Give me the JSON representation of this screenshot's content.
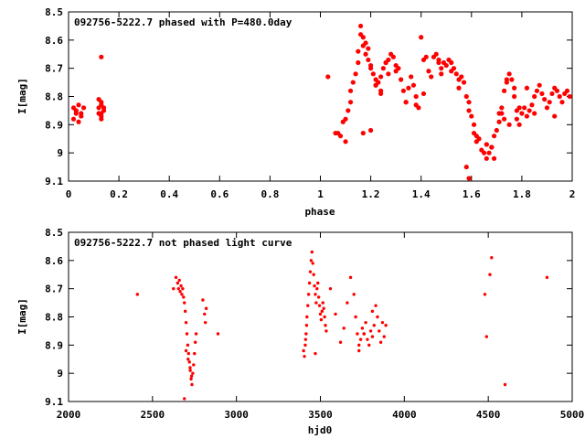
{
  "chart_data": [
    {
      "type": "scatter",
      "title": "092756-5222.7 phased with P=480.0day",
      "xlabel": "phase",
      "ylabel": "I[mag]",
      "xlim": [
        0,
        2
      ],
      "ylim": [
        9.1,
        8.5
      ],
      "y_inverted": true,
      "xticks": [
        0,
        0.2,
        0.4,
        0.6,
        0.8,
        1,
        1.2,
        1.4,
        1.6,
        1.8,
        2
      ],
      "xtick_labels": [
        "0",
        "0.2",
        "0.4",
        "0.6",
        "0.8",
        "1",
        "1.2",
        "1.4",
        "1.6",
        "1.8",
        "2"
      ],
      "yticks": [
        8.5,
        8.6,
        8.7,
        8.8,
        8.9,
        9,
        9.1
      ],
      "ytick_labels": [
        "8.5",
        "8.6",
        "8.7",
        "8.8",
        "8.9",
        "9",
        "9.1"
      ],
      "grid": false,
      "marker_color": "#ff0000",
      "x": [
        0.02,
        0.03,
        0.04,
        0.05,
        0.03,
        0.06,
        0.04,
        0.02,
        0.05,
        0.03,
        0.12,
        0.12,
        0.13,
        0.13,
        0.13,
        0.14,
        0.12,
        0.13,
        0.14,
        0.13,
        0.13,
        1.03,
        1.06,
        1.07,
        1.08,
        1.09,
        1.1,
        1.11,
        1.12,
        1.12,
        1.13,
        1.14,
        1.15,
        1.15,
        1.16,
        1.16,
        1.17,
        1.17,
        1.18,
        1.18,
        1.19,
        1.19,
        1.2,
        1.2,
        1.21,
        1.22,
        1.22,
        1.23,
        1.24,
        1.24,
        1.25,
        1.26,
        1.27,
        1.28,
        1.29,
        1.3,
        1.3,
        1.31,
        1.32,
        1.33,
        1.34,
        1.35,
        1.36,
        1.37,
        1.38,
        1.38,
        1.39,
        1.4,
        1.41,
        1.41,
        1.42,
        1.44,
        1.45,
        1.46,
        1.47,
        1.48,
        1.48,
        1.49,
        1.5,
        1.51,
        1.52,
        1.53,
        1.54,
        1.55,
        1.56,
        1.57,
        1.58,
        1.59,
        1.59,
        1.6,
        1.61,
        1.61,
        1.62,
        1.63,
        1.64,
        1.65,
        1.66,
        1.67,
        1.68,
        1.69,
        1.7,
        1.71,
        1.72,
        1.72,
        1.73,
        1.74,
        1.75,
        1.76,
        1.77,
        1.77,
        1.78,
        1.78,
        1.79,
        1.8,
        1.81,
        1.82,
        1.83,
        1.84,
        1.85,
        1.86,
        1.87,
        1.88,
        1.89,
        1.9,
        1.91,
        1.92,
        1.93,
        1.94,
        1.95,
        1.96,
        1.97,
        1.98,
        1.99,
        1.1,
        1.17,
        1.2,
        1.22,
        1.24,
        1.27,
        1.52,
        1.58,
        1.59,
        1.71,
        1.75,
        1.79,
        1.85,
        1.93,
        1.55,
        1.62,
        1.66,
        1.68,
        1.69,
        1.73,
        1.26,
        1.34,
        1.43,
        1.47,
        1.66,
        1.74,
        1.82
      ],
      "y": [
        8.84,
        8.85,
        8.83,
        8.87,
        8.86,
        8.84,
        8.89,
        8.88,
        8.86,
        8.85,
        8.86,
        8.84,
        8.82,
        8.83,
        8.87,
        8.85,
        8.81,
        8.66,
        8.84,
        8.86,
        8.88,
        8.73,
        8.93,
        8.93,
        8.94,
        8.89,
        8.88,
        8.85,
        8.82,
        8.78,
        8.75,
        8.72,
        8.68,
        8.64,
        8.58,
        8.55,
        8.59,
        8.62,
        8.61,
        8.65,
        8.63,
        8.67,
        8.69,
        8.7,
        8.72,
        8.74,
        8.76,
        8.75,
        8.78,
        8.73,
        8.7,
        8.68,
        8.67,
        8.65,
        8.66,
        8.69,
        8.71,
        8.7,
        8.74,
        8.78,
        8.82,
        8.77,
        8.73,
        8.76,
        8.8,
        8.83,
        8.84,
        8.59,
        8.67,
        8.79,
        8.66,
        8.73,
        8.66,
        8.65,
        8.67,
        8.7,
        8.72,
        8.68,
        8.69,
        8.67,
        8.68,
        8.7,
        8.72,
        8.74,
        8.73,
        8.75,
        8.8,
        8.82,
        8.85,
        8.87,
        8.9,
        8.93,
        8.96,
        8.95,
        8.99,
        9.0,
        9.02,
        9.0,
        8.98,
        8.94,
        8.92,
        8.89,
        8.86,
        8.84,
        8.78,
        8.75,
        8.72,
        8.74,
        8.77,
        8.8,
        8.85,
        8.88,
        8.9,
        8.86,
        8.84,
        8.87,
        8.85,
        8.83,
        8.8,
        8.78,
        8.76,
        8.79,
        8.81,
        8.84,
        8.82,
        8.79,
        8.77,
        8.78,
        8.8,
        8.82,
        8.79,
        8.78,
        8.8,
        8.96,
        8.93,
        8.92,
        8.76,
        8.79,
        8.72,
        8.71,
        9.05,
        9.09,
        8.86,
        8.9,
        8.84,
        8.86,
        8.87,
        8.77,
        8.94,
        8.97,
        8.98,
        9.02,
        8.88,
        8.68,
        8.82,
        8.71,
        8.68,
        8.97,
        8.74,
        8.77
      ]
    },
    {
      "type": "scatter",
      "title": "092756-5222.7 not phased light curve",
      "xlabel": "hjd0",
      "ylabel": "I[mag]",
      "xlim": [
        2000,
        5000
      ],
      "ylim": [
        9.1,
        8.5
      ],
      "y_inverted": true,
      "xticks": [
        2000,
        2500,
        3000,
        3500,
        4000,
        4500,
        5000
      ],
      "xtick_labels": [
        "2000",
        "2500",
        "3000",
        "3500",
        "4000",
        "4500",
        "5000"
      ],
      "yticks": [
        8.5,
        8.6,
        8.7,
        8.8,
        8.9,
        9,
        9.1
      ],
      "ytick_labels": [
        "8.5",
        "8.6",
        "8.7",
        "8.8",
        "8.9",
        "9",
        "9.1"
      ],
      "grid": false,
      "marker_color": "#ff0000",
      "x": [
        2410,
        2625,
        2640,
        2650,
        2655,
        2660,
        2665,
        2670,
        2675,
        2680,
        2685,
        2690,
        2695,
        2700,
        2705,
        2710,
        2715,
        2720,
        2725,
        2730,
        2735,
        2740,
        2745,
        2750,
        2755,
        2760,
        2690,
        2700,
        2712,
        2724,
        2733,
        2800,
        2810,
        2815,
        2820,
        2890,
        3400,
        3405,
        3410,
        3412,
        3415,
        3418,
        3420,
        3425,
        3430,
        3435,
        3440,
        3445,
        3450,
        3455,
        3460,
        3465,
        3470,
        3475,
        3480,
        3485,
        3490,
        3495,
        3500,
        3505,
        3510,
        3515,
        3520,
        3525,
        3530,
        3535,
        3470,
        3560,
        3590,
        3620,
        3640,
        3660,
        3680,
        3700,
        3710,
        3720,
        3730,
        3740,
        3750,
        3760,
        3770,
        3780,
        3790,
        3800,
        3810,
        3820,
        3830,
        3840,
        3850,
        3860,
        3870,
        3880,
        3890,
        3730,
        3760,
        3810,
        4480,
        4490,
        4510,
        4520,
        4600,
        4850
      ],
      "y": [
        8.72,
        8.7,
        8.66,
        8.68,
        8.7,
        8.67,
        8.71,
        8.69,
        8.72,
        8.7,
        8.73,
        8.75,
        8.78,
        8.82,
        8.86,
        8.9,
        8.93,
        8.96,
        8.99,
        9.02,
        9.04,
        9.0,
        8.97,
        8.93,
        8.89,
        8.86,
        9.09,
        8.92,
        8.95,
        8.98,
        9.01,
        8.74,
        8.79,
        8.82,
        8.77,
        8.86,
        8.92,
        8.94,
        8.9,
        8.88,
        8.86,
        8.83,
        8.8,
        8.76,
        8.72,
        8.68,
        8.64,
        8.6,
        8.57,
        8.61,
        8.65,
        8.69,
        8.72,
        8.75,
        8.7,
        8.68,
        8.73,
        8.76,
        8.79,
        8.81,
        8.78,
        8.75,
        8.77,
        8.8,
        8.83,
        8.85,
        8.93,
        8.7,
        8.79,
        8.89,
        8.84,
        8.75,
        8.66,
        8.72,
        8.8,
        8.86,
        8.92,
        8.88,
        8.84,
        8.86,
        8.82,
        8.88,
        8.9,
        8.85,
        8.87,
        8.83,
        8.76,
        8.8,
        8.85,
        8.89,
        8.82,
        8.87,
        8.83,
        8.9,
        8.86,
        8.78,
        8.72,
        8.87,
        8.65,
        8.59,
        9.04,
        8.66
      ]
    }
  ]
}
